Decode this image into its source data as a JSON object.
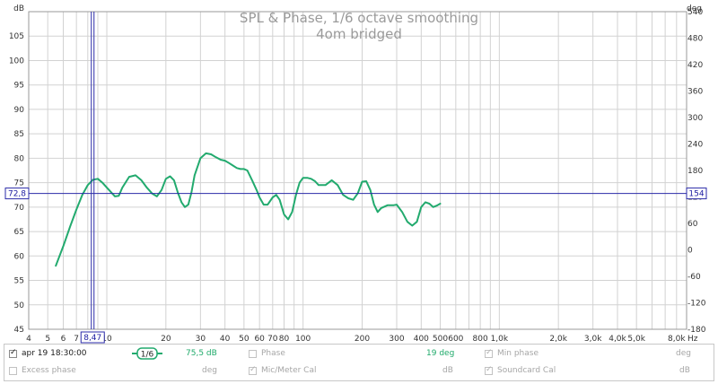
{
  "chart_data": {
    "type": "line",
    "title": "SPL & Phase, 1/6 octave smoothing",
    "subtitle": "4om bridged",
    "xlabel": "Hz",
    "ylabel_left": "dB",
    "ylabel_right": "deg",
    "xscale": "log",
    "xlim": [
      4,
      9000
    ],
    "ylim": [
      45,
      110
    ],
    "y2lim": [
      -180,
      540
    ],
    "grid": true,
    "x_ticks": [
      {
        "v": 4,
        "label": "4"
      },
      {
        "v": 5,
        "label": "5"
      },
      {
        "v": 6,
        "label": "6"
      },
      {
        "v": 7,
        "label": "7"
      },
      {
        "v": 10,
        "label": "10"
      },
      {
        "v": 20,
        "label": "20"
      },
      {
        "v": 30,
        "label": "30"
      },
      {
        "v": 40,
        "label": "40"
      },
      {
        "v": 50,
        "label": "50"
      },
      {
        "v": 60,
        "label": "60"
      },
      {
        "v": 70,
        "label": "70"
      },
      {
        "v": 80,
        "label": "80"
      },
      {
        "v": 100,
        "label": "100"
      },
      {
        "v": 200,
        "label": "200"
      },
      {
        "v": 300,
        "label": "300"
      },
      {
        "v": 400,
        "label": "400"
      },
      {
        "v": 500,
        "label": "500"
      },
      {
        "v": 600,
        "label": "600"
      },
      {
        "v": 800,
        "label": "800"
      },
      {
        "v": 1000,
        "label": "1,0k"
      },
      {
        "v": 2000,
        "label": "2,0k"
      },
      {
        "v": 3000,
        "label": "3,0k"
      },
      {
        "v": 4000,
        "label": "4,0k"
      },
      {
        "v": 5000,
        "label": "5,0k"
      },
      {
        "v": 8000,
        "label": "8,0k"
      }
    ],
    "y_ticks": [
      45,
      50,
      55,
      60,
      65,
      70,
      75,
      80,
      85,
      90,
      95,
      100,
      105
    ],
    "y_top_label": "dB",
    "y2_ticks": [
      -180,
      -120,
      -60,
      0,
      60,
      120,
      180,
      240,
      300,
      360,
      420,
      480,
      540
    ],
    "y2_top_label": "deg",
    "cursor": {
      "x": 8.47,
      "x_label": "8,47",
      "y": 72.8,
      "y_label": "72,8",
      "y2_label": "154"
    },
    "series": [
      {
        "color": "#22aa6e",
        "x": [
          5.5,
          6,
          6.5,
          7,
          7.5,
          8,
          8.5,
          9,
          9.5,
          10,
          11,
          11.5,
          12,
          13,
          14,
          15,
          16,
          17,
          18,
          19,
          20,
          21,
          22,
          23,
          24,
          25,
          26,
          27,
          28,
          30,
          32,
          34,
          36,
          38,
          40,
          42,
          44,
          46,
          48,
          50,
          52,
          55,
          58,
          60,
          63,
          66,
          70,
          73,
          76,
          80,
          84,
          88,
          92,
          96,
          100,
          105,
          110,
          115,
          120,
          130,
          140,
          150,
          160,
          170,
          180,
          190,
          200,
          210,
          220,
          230,
          240,
          250,
          270,
          290,
          300,
          320,
          340,
          360,
          380,
          400,
          420,
          440,
          460,
          480,
          500
        ],
        "y": [
          58,
          62,
          66,
          69.5,
          72.5,
          74.5,
          75.6,
          75.8,
          75,
          74,
          72.2,
          72.3,
          74,
          76.2,
          76.5,
          75.5,
          74,
          72.8,
          72.2,
          73.5,
          75.8,
          76.3,
          75.5,
          73,
          71,
          70,
          70.5,
          73,
          76.5,
          80,
          81,
          80.8,
          80.2,
          79.7,
          79.5,
          79,
          78.5,
          78,
          77.8,
          77.8,
          77.5,
          75.5,
          73.5,
          72,
          70.5,
          70.5,
          72,
          72.5,
          71.5,
          68.5,
          67.5,
          69,
          72.5,
          75,
          76,
          76,
          75.8,
          75.3,
          74.5,
          74.5,
          75.5,
          74.5,
          72.5,
          71.8,
          71.5,
          72.8,
          75.2,
          75.3,
          73.5,
          70.5,
          69,
          69.8,
          70.4,
          70.4,
          70.5,
          69,
          67,
          66.2,
          67,
          70,
          71,
          70.7,
          70,
          70.3,
          70.7
        ]
      }
    ]
  },
  "legend": {
    "row1": {
      "measurement": "apr 19 18:30:00",
      "smoothing": "1/6",
      "spl_value": "75,5 dB",
      "phase_label": "Phase",
      "phase_value": "19 deg",
      "minphase_label": "Min phase",
      "minphase_unit": "deg"
    },
    "row2": {
      "excess_label": "Excess phase",
      "excess_unit": "deg",
      "micmeter_label": "Mic/Meter Cal",
      "micmeter_unit": "dB",
      "soundcard_label": "Soundcard Cal",
      "soundcard_unit": "dB"
    }
  },
  "colors": {
    "grid": "#d2d2d2",
    "axes": "#9a9a9a",
    "cursor": "#2a2aa8",
    "trace": "#22aa6e"
  }
}
